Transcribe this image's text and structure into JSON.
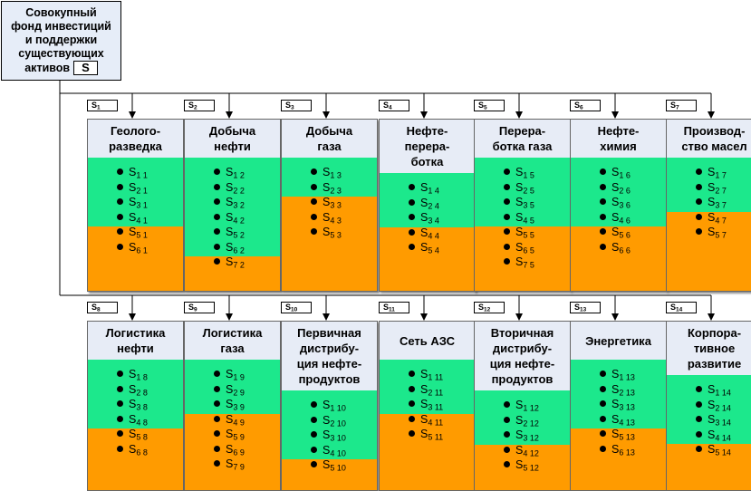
{
  "root": {
    "title_lines": [
      "Совокупный",
      "фонд инвестиций",
      "и поддержки",
      "существующих",
      "активов"
    ],
    "symbol": "S"
  },
  "modules": [
    {
      "code_letter": "S",
      "code_num": "1",
      "title": "Геолого-\nразведка",
      "green_count": 4,
      "items": [
        [
          "S",
          "1 1"
        ],
        [
          "S",
          "2 1"
        ],
        [
          "S",
          "3 1"
        ],
        [
          "S",
          "4 1"
        ],
        [
          "S",
          "5 1"
        ],
        [
          "S",
          "6 1"
        ]
      ]
    },
    {
      "code_letter": "S",
      "code_num": "2",
      "title": "Добыча\nнефти",
      "green_count": 6,
      "items": [
        [
          "S",
          "1 2"
        ],
        [
          "S",
          "2 2"
        ],
        [
          "S",
          "3 2"
        ],
        [
          "S",
          "4 2"
        ],
        [
          "S",
          "5 2"
        ],
        [
          "S",
          "6 2"
        ],
        [
          "S",
          "7 2"
        ]
      ]
    },
    {
      "code_letter": "S",
      "code_num": "3",
      "title": "Добыча\nгаза",
      "green_count": 2,
      "items": [
        [
          "S",
          "1 3"
        ],
        [
          "S",
          "2 3"
        ],
        [
          "S",
          "3 3"
        ],
        [
          "S",
          "4 3"
        ],
        [
          "S",
          "5 3"
        ]
      ]
    },
    {
      "code_letter": "S",
      "code_num": "4",
      "title": "Нефте-\nпереpa-\nботка",
      "green_count": 3,
      "items": [
        [
          "S",
          "1 4"
        ],
        [
          "S",
          "2 4"
        ],
        [
          "S",
          "3 4"
        ],
        [
          "S",
          "4 4"
        ],
        [
          "S",
          "5 4"
        ]
      ]
    },
    {
      "code_letter": "S",
      "code_num": "5",
      "title": "Перера-\nботка газа",
      "green_count": 4,
      "items": [
        [
          "S",
          "1 5"
        ],
        [
          "S",
          "2 5"
        ],
        [
          "S",
          "3 5"
        ],
        [
          "S",
          "4 5"
        ],
        [
          "S",
          "5 5"
        ],
        [
          "S",
          "6 5"
        ],
        [
          "S",
          "7 5"
        ]
      ]
    },
    {
      "code_letter": "S",
      "code_num": "6",
      "title": "Нефте-\nхимия",
      "green_count": 4,
      "items": [
        [
          "S",
          "1 6"
        ],
        [
          "S",
          "2 6"
        ],
        [
          "S",
          "3 6"
        ],
        [
          "S",
          "4 6"
        ],
        [
          "S",
          "5 6"
        ],
        [
          "S",
          "6 6"
        ]
      ]
    },
    {
      "code_letter": "S",
      "code_num": "7",
      "title": "Производ-\nство масел",
      "green_count": 3,
      "items": [
        [
          "S",
          "1 7"
        ],
        [
          "S",
          "2 7"
        ],
        [
          "S",
          "3 7"
        ],
        [
          "S",
          "4 7"
        ],
        [
          "S",
          "5 7"
        ]
      ]
    },
    {
      "code_letter": "S",
      "code_num": "8",
      "title": "Логистика\nнефти",
      "green_count": 4,
      "items": [
        [
          "S",
          "1 8"
        ],
        [
          "S",
          "2 8"
        ],
        [
          "S",
          "3 8"
        ],
        [
          "S",
          "4 8"
        ],
        [
          "S",
          "5 8"
        ],
        [
          "S",
          "6 8"
        ]
      ]
    },
    {
      "code_letter": "S",
      "code_num": "9",
      "title": "Логистика\nгаза",
      "green_count": 3,
      "items": [
        [
          "S",
          "1 9"
        ],
        [
          "S",
          "2 9"
        ],
        [
          "S",
          "3 9"
        ],
        [
          "S",
          "4 9"
        ],
        [
          "S",
          "5 9"
        ],
        [
          "S",
          "6 9"
        ],
        [
          "S",
          "7 9"
        ]
      ]
    },
    {
      "code_letter": "S",
      "code_num": "10",
      "title": "Первичная\nдистрибу-\nция нефте-\nпродуктов",
      "green_count": 4,
      "items": [
        [
          "S",
          "1 10"
        ],
        [
          "S",
          "2 10"
        ],
        [
          "S",
          "3 10"
        ],
        [
          "S",
          "4 10"
        ],
        [
          "S",
          "5 10"
        ]
      ]
    },
    {
      "code_letter": "S",
      "code_num": "11",
      "title": "Сеть АЗС",
      "green_count": 3,
      "items": [
        [
          "S",
          "1 11"
        ],
        [
          "S",
          "2 11"
        ],
        [
          "S",
          "3 11"
        ],
        [
          "S",
          "4 11"
        ],
        [
          "S",
          "5 11"
        ]
      ]
    },
    {
      "code_letter": "S",
      "code_num": "12",
      "title": "Вторичная\nдистрибу-\nция нефте-\nпродуктов",
      "green_count": 3,
      "items": [
        [
          "S",
          "1 12"
        ],
        [
          "S",
          "2 12"
        ],
        [
          "S",
          "3 12"
        ],
        [
          "S",
          "4 12"
        ],
        [
          "S",
          "5 12"
        ]
      ]
    },
    {
      "code_letter": "S",
      "code_num": "13",
      "title": "Энергетика",
      "green_count": 4,
      "items": [
        [
          "S",
          "1 13"
        ],
        [
          "S",
          "2 13"
        ],
        [
          "S",
          "3 13"
        ],
        [
          "S",
          "4 13"
        ],
        [
          "S",
          "5 13"
        ],
        [
          "S",
          "6 13"
        ]
      ]
    },
    {
      "code_letter": "S",
      "code_num": "14",
      "title": "Корпора-\nтивное\nразвитие",
      "green_count": 4,
      "items": [
        [
          "S",
          "1 14"
        ],
        [
          "S",
          "2 14"
        ],
        [
          "S",
          "3 14"
        ],
        [
          "S",
          "4 14"
        ],
        [
          "S",
          "5 14"
        ]
      ]
    }
  ],
  "colors": {
    "green": "#1ce88c",
    "orange": "#ff9b00",
    "header": "#e7ecf6"
  }
}
